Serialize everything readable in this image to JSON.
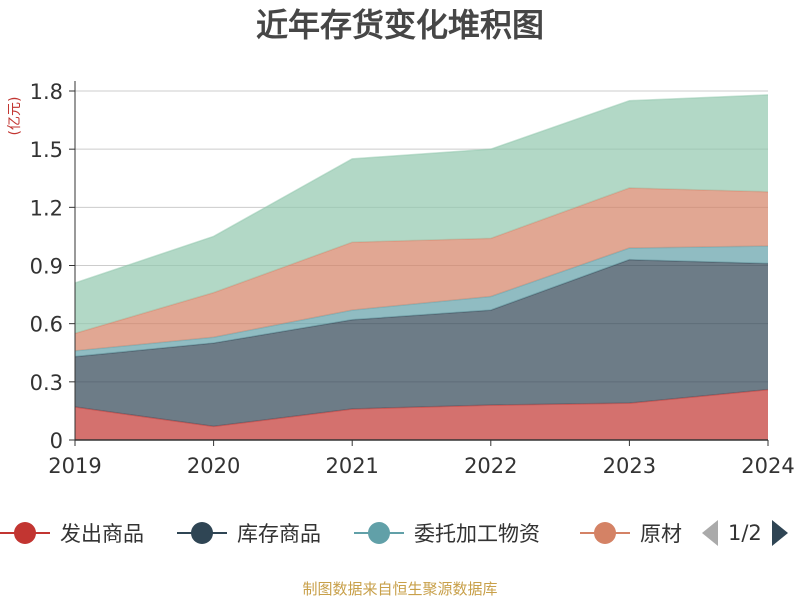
{
  "chart_data": {
    "type": "area",
    "stacked": true,
    "title": "近年存货变化堆积图",
    "unit_label": "(亿元)",
    "x": [
      "2019",
      "2020",
      "2021",
      "2022",
      "2023",
      "2024"
    ],
    "ylim": [
      0,
      1.8
    ],
    "yticks": [
      "0",
      "0.3",
      "0.6",
      "0.9",
      "1.2",
      "1.5",
      "1.8"
    ],
    "grid": true,
    "legend_position": "bottom",
    "series": [
      {
        "name": "发出商品",
        "color": "#c23531",
        "values": [
          0.17,
          0.07,
          0.16,
          0.18,
          0.19,
          0.26
        ]
      },
      {
        "name": "库存商品",
        "color": "#2f4554",
        "values": [
          0.26,
          0.43,
          0.46,
          0.49,
          0.74,
          0.65
        ]
      },
      {
        "name": "委托加工物资",
        "color": "#61a0a8",
        "values": [
          0.03,
          0.03,
          0.05,
          0.07,
          0.06,
          0.09
        ]
      },
      {
        "name": "原材料",
        "color": "#d48265",
        "values": [
          0.09,
          0.23,
          0.35,
          0.3,
          0.31,
          0.28
        ]
      },
      {
        "name": "",
        "color": "#91c7ae",
        "values": [
          0.26,
          0.29,
          0.43,
          0.46,
          0.45,
          0.5
        ]
      }
    ]
  },
  "legend": {
    "items": [
      "发出商品",
      "库存商品",
      "委托加工物资",
      "原材"
    ],
    "page_indicator": "1/2"
  },
  "source_text": "制图数据来自恒生聚源数据库"
}
